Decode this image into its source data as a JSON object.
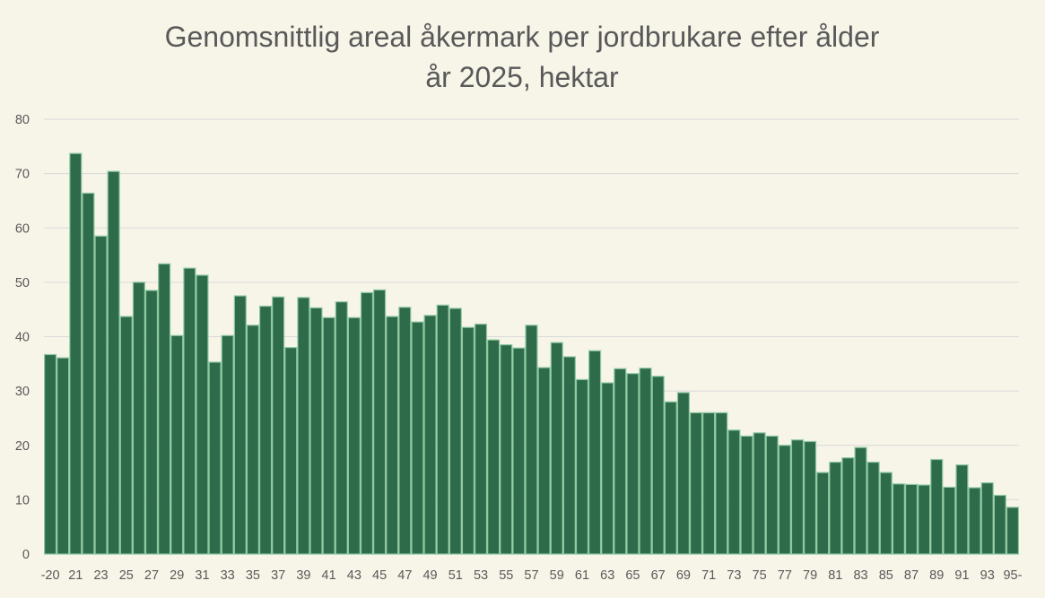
{
  "chart_data": {
    "type": "bar",
    "title_lines": [
      "Genomsnittlig areal åkermark per jordbrukare efter ålder",
      "år 2025, hektar"
    ],
    "xlabel": "",
    "ylabel": "",
    "ylim": [
      0,
      80
    ],
    "y_ticks": [
      0,
      10,
      20,
      30,
      40,
      50,
      60,
      70,
      80
    ],
    "grid": true,
    "legend": "none",
    "bar_color": "#2e6b4a",
    "bar_edge_color": "#8cc79f",
    "background_color": "#f7f4e8",
    "categories": [
      "-20",
      "20",
      "21",
      "22",
      "23",
      "24",
      "25",
      "26",
      "27",
      "28",
      "29",
      "30",
      "31",
      "32",
      "33",
      "34",
      "35",
      "36",
      "37",
      "38",
      "39",
      "40",
      "41",
      "42",
      "43",
      "44",
      "45",
      "46",
      "47",
      "48",
      "49",
      "50",
      "51",
      "52",
      "53",
      "54",
      "55",
      "56",
      "57",
      "58",
      "59",
      "60",
      "61",
      "62",
      "63",
      "64",
      "65",
      "66",
      "67",
      "68",
      "69",
      "70",
      "71",
      "72",
      "73",
      "74",
      "75",
      "76",
      "77",
      "78",
      "79",
      "80",
      "81",
      "82",
      "83",
      "84",
      "85",
      "86",
      "87",
      "88",
      "89",
      "90",
      "91",
      "92",
      "93",
      "94",
      "95-"
    ],
    "shown_x_ticks": [
      "-20",
      "21",
      "23",
      "25",
      "27",
      "29",
      "31",
      "33",
      "35",
      "37",
      "39",
      "41",
      "43",
      "45",
      "47",
      "49",
      "51",
      "53",
      "55",
      "57",
      "59",
      "61",
      "63",
      "65",
      "67",
      "69",
      "71",
      "73",
      "75",
      "77",
      "79",
      "81",
      "83",
      "85",
      "87",
      "89",
      "91",
      "93",
      "95-"
    ],
    "values": [
      36.7,
      36.1,
      73.7,
      66.4,
      58.5,
      70.4,
      43.7,
      50.0,
      48.5,
      53.4,
      40.2,
      52.6,
      51.3,
      35.3,
      40.2,
      47.5,
      42.1,
      45.6,
      47.3,
      38.0,
      47.2,
      45.3,
      43.5,
      46.4,
      43.5,
      48.1,
      48.6,
      43.7,
      45.4,
      42.7,
      43.9,
      45.8,
      45.2,
      41.7,
      42.3,
      39.4,
      38.5,
      37.9,
      42.1,
      34.3,
      38.9,
      36.3,
      32.1,
      37.4,
      31.5,
      34.1,
      33.2,
      34.2,
      32.7,
      28.0,
      29.7,
      26.0,
      26.0,
      26.0,
      22.8,
      21.7,
      22.3,
      21.7,
      20.0,
      21.0,
      20.7,
      15.0,
      16.9,
      17.7,
      19.6,
      16.9,
      15.0,
      12.9,
      12.8,
      12.7,
      17.4,
      12.3,
      16.4,
      12.2,
      13.1,
      10.8,
      8.6
    ]
  }
}
